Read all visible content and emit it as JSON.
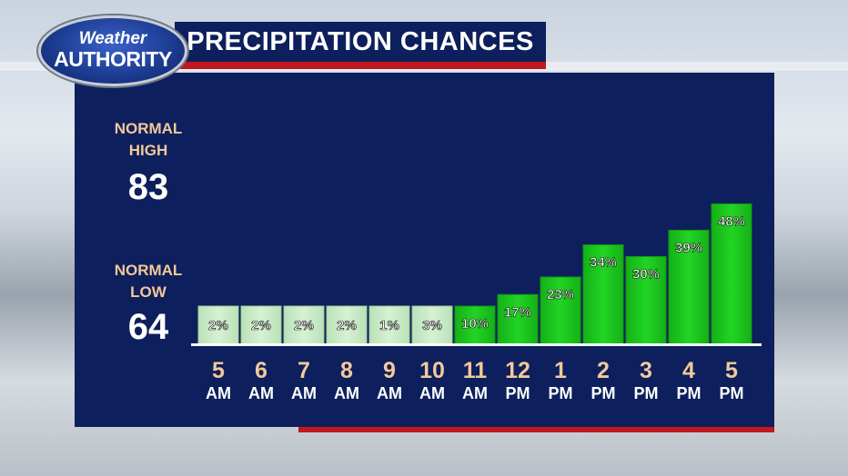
{
  "logo": {
    "line1": "Weather",
    "line2": "AUTHORITY"
  },
  "title": "PRECIPITATION CHANCES",
  "normals": {
    "high_label_1": "NORMAL",
    "high_label_2": "HIGH",
    "high_value": "83",
    "low_label_1": "NORMAL",
    "low_label_2": "LOW",
    "low_value": "64"
  },
  "colors": {
    "panel": "#0d1f5c",
    "accent_red": "#c0181e",
    "low_bar": "#c8ebc6",
    "high_bar": "#19c21b",
    "hour_label": "#f2c99a",
    "period_label": "#ffffff"
  },
  "chart_data": {
    "type": "bar",
    "title": "PRECIPITATION CHANCES",
    "categories": [
      "5 AM",
      "6 AM",
      "7 AM",
      "8 AM",
      "9 AM",
      "10 AM",
      "11 AM",
      "12 PM",
      "1 PM",
      "2 PM",
      "3 PM",
      "4 PM",
      "5 PM"
    ],
    "hours": [
      "5",
      "6",
      "7",
      "8",
      "9",
      "10",
      "11",
      "12",
      "1",
      "2",
      "3",
      "4",
      "5"
    ],
    "periods": [
      "AM",
      "AM",
      "AM",
      "AM",
      "AM",
      "AM",
      "AM",
      "PM",
      "PM",
      "PM",
      "PM",
      "PM",
      "PM"
    ],
    "values": [
      2,
      2,
      2,
      2,
      1,
      3,
      10,
      17,
      23,
      34,
      30,
      39,
      48
    ],
    "labels": [
      "2%",
      "2%",
      "2%",
      "2%",
      "1%",
      "3%",
      "10%",
      "17%",
      "23%",
      "34%",
      "30%",
      "39%",
      "48%"
    ],
    "unit": "%",
    "ylim": [
      0,
      60
    ],
    "grid": false,
    "legend": "none"
  }
}
